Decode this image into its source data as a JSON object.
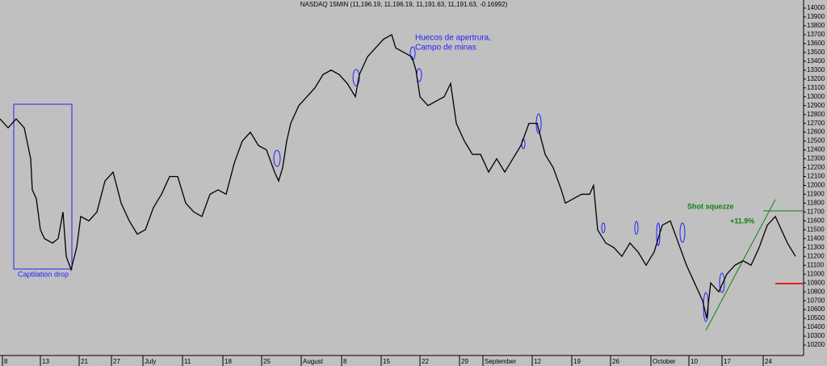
{
  "chart_data": {
    "type": "line",
    "title": "NASDAQ 15MIN (11,196.19, 11,196.19, 11,191.63, 11,191.63, -0.16992)",
    "annotations": [
      "Huecos de apertrura,",
      "Campo de minas",
      "Captilation drop",
      "Shot squezze",
      "+11.9%"
    ],
    "x": [
      0,
      10,
      20,
      30,
      38,
      40,
      45,
      50,
      55,
      65,
      72,
      78,
      82,
      88,
      95,
      100,
      110,
      120,
      130,
      140,
      150,
      160,
      170,
      180,
      190,
      200,
      210,
      220,
      230,
      240,
      250,
      260,
      270,
      280,
      290,
      300,
      310,
      320,
      330,
      340,
      345,
      350,
      355,
      360,
      370,
      380,
      390,
      400,
      410,
      420,
      430,
      440,
      445,
      455,
      465,
      475,
      485,
      490,
      500,
      510,
      515,
      520,
      530,
      540,
      550,
      558,
      565,
      575,
      585,
      595,
      605,
      615,
      625,
      635,
      645,
      655,
      665,
      675,
      685,
      695,
      700,
      710,
      720,
      730,
      735,
      740,
      750,
      760,
      770,
      780,
      790,
      800,
      810,
      820,
      830,
      840,
      850,
      860,
      870,
      875,
      880,
      890,
      900,
      910,
      920,
      930,
      940,
      950,
      960,
      965,
      975,
      985
    ],
    "series": [
      {
        "name": "NASDAQ",
        "color": "#000000",
        "values": [
          12750,
          12650,
          12750,
          12650,
          12300,
          11950,
          11850,
          11500,
          11400,
          11350,
          11400,
          11700,
          11200,
          11050,
          11300,
          11650,
          11600,
          11700,
          12050,
          12150,
          11800,
          11600,
          11450,
          11500,
          11750,
          11900,
          12100,
          12100,
          11800,
          11700,
          11650,
          11900,
          11950,
          11900,
          12250,
          12500,
          12600,
          12450,
          12400,
          12150,
          12050,
          12200,
          12500,
          12700,
          12900,
          13000,
          13100,
          13250,
          13300,
          13250,
          13150,
          13000,
          13250,
          13450,
          13550,
          13650,
          13700,
          13550,
          13500,
          13450,
          13300,
          13000,
          12900,
          12950,
          13000,
          13150,
          12700,
          12500,
          12350,
          12350,
          12150,
          12300,
          12150,
          12300,
          12450,
          12700,
          12700,
          12350,
          12200,
          11950,
          11800,
          11850,
          11900,
          11900,
          12000,
          11500,
          11350,
          11300,
          11200,
          11350,
          11250,
          11100,
          11250,
          11550,
          11600,
          11350,
          11100,
          10900,
          10700,
          10500,
          10900,
          10800,
          11000,
          11100,
          11150,
          11100,
          11300,
          11550,
          11650,
          11550,
          11350,
          11200
        ]
      }
    ],
    "xlim": [
      0,
      995
    ],
    "xticks": [
      {
        "value": 3,
        "label": "8"
      },
      {
        "value": 50,
        "label": "13"
      },
      {
        "value": 98,
        "label": "21"
      },
      {
        "value": 138,
        "label": "27"
      },
      {
        "value": 177,
        "label": "July"
      },
      {
        "value": 226,
        "label": "11"
      },
      {
        "value": 276,
        "label": "18"
      },
      {
        "value": 324,
        "label": "25"
      },
      {
        "value": 373,
        "label": "August"
      },
      {
        "value": 423,
        "label": "8"
      },
      {
        "value": 472,
        "label": "15"
      },
      {
        "value": 520,
        "label": "22"
      },
      {
        "value": 569,
        "label": "29"
      },
      {
        "value": 598,
        "label": "September"
      },
      {
        "value": 659,
        "label": "12"
      },
      {
        "value": 708,
        "label": "19"
      },
      {
        "value": 756,
        "label": "26"
      },
      {
        "value": 806,
        "label": "October"
      },
      {
        "value": 853,
        "label": "10"
      },
      {
        "value": 894,
        "label": "17"
      },
      {
        "value": 945,
        "label": "24"
      }
    ],
    "ylim": [
      10100,
      14100
    ],
    "yticks": [
      10200,
      10300,
      10400,
      10500,
      10600,
      10700,
      10800,
      10900,
      11000,
      11100,
      11200,
      11300,
      11400,
      11500,
      11600,
      11700,
      11800,
      11900,
      12000,
      12100,
      12200,
      12300,
      12400,
      12500,
      12600,
      12700,
      12800,
      12900,
      13000,
      13100,
      13200,
      13300,
      13400,
      13500,
      13600,
      13700,
      13800,
      13900,
      14000
    ]
  }
}
